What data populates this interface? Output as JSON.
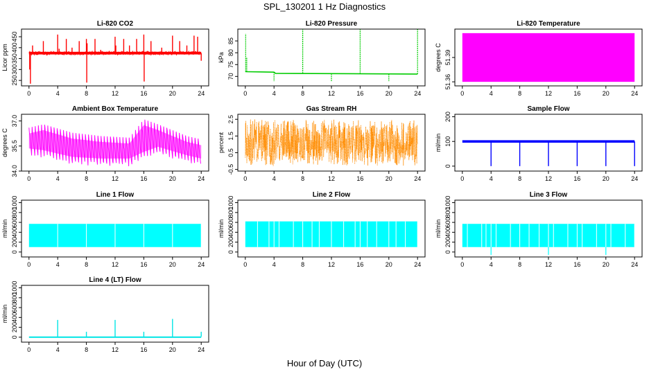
{
  "figure": {
    "title": "SPL_130201  1 Hz Diagnostics",
    "xlabel": "Hour of Day (UTC)"
  },
  "chart_data": [
    {
      "type": "line",
      "title": "Li-820 CO2",
      "ylabel": "Licor ppm",
      "xlim": [
        0,
        24
      ],
      "ylim": [
        225,
        485
      ],
      "xticks": [
        0,
        4,
        8,
        12,
        16,
        20,
        24
      ],
      "yticks": [
        250,
        300,
        350,
        400,
        450
      ],
      "color": "#ff0000",
      "series": [
        {
          "name": "",
          "pattern": "co2",
          "base": 375,
          "spread": 8,
          "spikes": [
            [
              0.1,
              300
            ],
            [
              0.2,
              235
            ],
            [
              0.5,
              410
            ],
            [
              2,
              430
            ],
            [
              4,
              460
            ],
            [
              4.2,
              395
            ],
            [
              5.2,
              440
            ],
            [
              6,
              400
            ],
            [
              7,
              430
            ],
            [
              8,
              440
            ],
            [
              8.05,
              240
            ],
            [
              8.1,
              420
            ],
            [
              9.2,
              440
            ],
            [
              10,
              390
            ],
            [
              12,
              450
            ],
            [
              12.1,
              410
            ],
            [
              13.2,
              440
            ],
            [
              14,
              410
            ],
            [
              15,
              440
            ],
            [
              16,
              460
            ],
            [
              16.05,
              245
            ],
            [
              17,
              430
            ],
            [
              18.5,
              400
            ],
            [
              20,
              455
            ],
            [
              21,
              430
            ],
            [
              22,
              410
            ],
            [
              23,
              455
            ],
            [
              23.5,
              450
            ],
            [
              24,
              340
            ]
          ]
        }
      ]
    },
    {
      "type": "line",
      "title": "Li-820 Pressure",
      "ylabel": "kPa",
      "xlim": [
        0,
        24
      ],
      "ylim": [
        66,
        90
      ],
      "xticks": [
        0,
        4,
        8,
        12,
        16,
        20,
        24
      ],
      "yticks": [
        70,
        75,
        80,
        85
      ],
      "color": "#00cc00",
      "series": [
        {
          "name": "",
          "pattern": "pressure",
          "steps": [
            [
              0,
              72
            ],
            [
              4,
              71.8
            ],
            [
              4.2,
              71.3
            ],
            [
              24,
              71
            ]
          ],
          "spikes": [
            [
              0.05,
              88
            ],
            [
              0.2,
              78
            ],
            [
              4,
              68
            ],
            [
              8,
              90
            ],
            [
              12,
              68
            ],
            [
              16,
              90
            ],
            [
              20,
              68
            ],
            [
              24,
              90
            ]
          ]
        }
      ]
    },
    {
      "type": "area",
      "title": "Li-820 Temperature",
      "ylabel": "degrees C",
      "xlim": [
        0,
        24
      ],
      "ylim": [
        51.355,
        51.425
      ],
      "xticks": [
        0,
        4,
        8,
        12,
        16,
        20,
        24
      ],
      "yticks": [
        51.36,
        51.39
      ],
      "color": "#ff00ff",
      "series": [
        {
          "name": "",
          "pattern": "band",
          "lower": 51.36,
          "upper": 51.42
        }
      ]
    },
    {
      "type": "line",
      "title": "Ambient Box Temperature",
      "ylabel": "degrees C",
      "xlim": [
        0,
        24
      ],
      "ylim": [
        34,
        37.4
      ],
      "xticks": [
        0,
        4,
        8,
        12,
        16,
        20,
        24
      ],
      "yticks": [
        34.0,
        35.5,
        37.0
      ],
      "ytick_labels": [
        "34.0",
        "35.5",
        "37.0"
      ],
      "color": "#ff00ff",
      "series": [
        {
          "name": "",
          "pattern": "sawtooth",
          "cycles": 55,
          "low": [
            [
              0,
              35.0
            ],
            [
              2,
              34.9
            ],
            [
              6,
              34.5
            ],
            [
              10,
              34.4
            ],
            [
              14,
              34.4
            ],
            [
              16,
              34.8
            ],
            [
              18,
              35.1
            ],
            [
              22,
              34.6
            ],
            [
              24,
              34.4
            ]
          ],
          "high": [
            [
              0,
              36.6
            ],
            [
              2,
              36.8
            ],
            [
              6,
              36.3
            ],
            [
              10,
              36.1
            ],
            [
              14,
              36.0
            ],
            [
              16,
              37.1
            ],
            [
              18,
              36.8
            ],
            [
              22,
              36.1
            ],
            [
              24,
              35.9
            ]
          ]
        }
      ]
    },
    {
      "type": "line",
      "title": "Gas Stream RH",
      "ylabel": "percent",
      "xlim": [
        0,
        24
      ],
      "ylim": [
        -0.6,
        2.8
      ],
      "xticks": [
        0,
        4,
        8,
        12,
        16,
        20,
        24
      ],
      "yticks": [
        -0.5,
        0.5,
        1.5,
        2.5
      ],
      "color": "#ff8c00",
      "series": [
        {
          "name": "",
          "pattern": "noise",
          "low": -0.3,
          "high": 2.5
        }
      ]
    },
    {
      "type": "line",
      "title": "Sample Flow",
      "ylabel": "ml/min",
      "xlim": [
        0,
        24
      ],
      "ylim": [
        -20,
        210
      ],
      "xticks": [
        0,
        4,
        8,
        12,
        16,
        20,
        24
      ],
      "yticks": [
        0,
        100,
        200
      ],
      "color": "#0000ff",
      "series": [
        {
          "name": "",
          "pattern": "flat",
          "base": 100,
          "band": [
            95,
            105
          ],
          "spikes": [
            [
              4,
              0
            ],
            [
              8,
              0
            ],
            [
              12,
              0
            ],
            [
              16,
              0
            ],
            [
              20,
              0
            ],
            [
              24,
              0
            ]
          ]
        }
      ]
    },
    {
      "type": "area",
      "title": "Line 1 Flow",
      "ylabel": "ml/min",
      "xlim": [
        0,
        24
      ],
      "ylim": [
        -100,
        1050
      ],
      "xticks": [
        0,
        4,
        8,
        12,
        16,
        20,
        24
      ],
      "yticks": [
        0,
        200,
        400,
        600,
        800,
        1000
      ],
      "color": "#00ffff",
      "series": [
        {
          "name": "",
          "pattern": "band",
          "lower": 100,
          "upper": 570,
          "gaps": [
            4,
            8,
            12,
            16,
            20,
            24
          ]
        }
      ]
    },
    {
      "type": "area",
      "title": "Line 2 Flow",
      "ylabel": "ml/min",
      "xlim": [
        0,
        24
      ],
      "ylim": [
        -100,
        1050
      ],
      "xticks": [
        0,
        4,
        8,
        12,
        16,
        20,
        24
      ],
      "yticks": [
        0,
        200,
        400,
        600,
        800,
        1000
      ],
      "color": "#00ffff",
      "series": [
        {
          "name": "",
          "pattern": "band",
          "lower": 100,
          "upper": 620,
          "gaps": [
            1.7,
            3.3,
            4,
            4.7,
            6.7,
            8,
            9.3,
            10.3,
            12,
            13.7,
            15.3,
            16,
            17,
            18.3,
            20,
            21,
            22.3,
            24
          ]
        }
      ]
    },
    {
      "type": "area",
      "title": "Line 3 Flow",
      "ylabel": "ml/min",
      "xlim": [
        0,
        24
      ],
      "ylim": [
        -100,
        1050
      ],
      "xticks": [
        0,
        4,
        8,
        12,
        16,
        20,
        24
      ],
      "yticks": [
        0,
        200,
        400,
        600,
        800,
        1000
      ],
      "color": "#00ffff",
      "series": [
        {
          "name": "",
          "pattern": "band",
          "lower": 100,
          "upper": 570,
          "gaps": [
            0.7,
            2.7,
            3.3,
            4,
            4.7,
            6.7,
            8,
            9.3,
            10.7,
            12,
            12.7,
            14.7,
            16,
            16.7,
            18.7,
            20,
            20.7,
            22.7,
            24
          ],
          "dips": [
            4,
            12,
            20
          ]
        }
      ]
    },
    {
      "type": "line",
      "title": "Line 4 (LT) Flow",
      "ylabel": "ml/min",
      "xlim": [
        0,
        24
      ],
      "ylim": [
        -100,
        1050
      ],
      "xticks": [
        0,
        4,
        8,
        12,
        16,
        20,
        24
      ],
      "yticks": [
        0,
        200,
        400,
        600,
        800,
        1000
      ],
      "color": "#00e5e5",
      "series": [
        {
          "name": "",
          "pattern": "flat",
          "base": 10,
          "band": [
            5,
            15
          ],
          "spikes": [
            [
              4,
              350
            ],
            [
              8,
              110
            ],
            [
              12,
              350
            ],
            [
              16,
              110
            ],
            [
              20,
              370
            ],
            [
              24,
              110
            ]
          ]
        }
      ]
    }
  ]
}
